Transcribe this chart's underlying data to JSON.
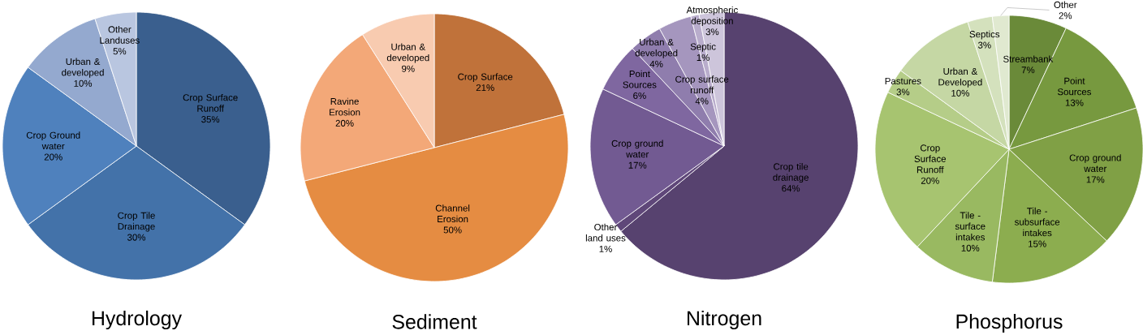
{
  "chart_data": [
    {
      "type": "pie",
      "title": "Hydrology",
      "categories": [
        "Crop Surface Runoff",
        "Crop Tile Drainage",
        "Crop Ground water",
        "Urban & developed",
        "Other Landuses"
      ],
      "values": [
        35,
        30,
        20,
        10,
        5
      ],
      "value_labels": [
        "35%",
        "30%",
        "20%",
        "10%",
        "5%"
      ],
      "colors": [
        "#3a5f8e",
        "#4372a9",
        "#4f81bd",
        "#94a9cf",
        "#b9c6e0"
      ]
    },
    {
      "type": "pie",
      "title": "Sediment",
      "categories": [
        "Crop Surface",
        "Channel Erosion",
        "Ravine Erosion",
        "Urban & developed"
      ],
      "values": [
        21,
        50,
        20,
        9
      ],
      "value_labels": [
        "21%",
        "50%",
        "20%",
        "9%"
      ],
      "colors": [
        "#c0723a",
        "#e58c42",
        "#f3a878",
        "#f8cbb0"
      ]
    },
    {
      "type": "pie",
      "title": "Nitrogen",
      "categories": [
        "Crop tile drainage",
        "Other land uses",
        "Crop ground water",
        "Point Sources",
        "Urban & developed",
        "Crop surface runoff",
        "Septic",
        "Atmospheric deposition"
      ],
      "values": [
        64,
        1,
        17,
        6,
        4,
        4,
        1,
        3
      ],
      "value_labels": [
        "64%",
        "1%",
        "17%",
        "6%",
        "4%",
        "4%",
        "1%",
        "3%"
      ],
      "colors": [
        "#57426f",
        "#5f4779",
        "#725a92",
        "#7f67a0",
        "#8f7dad",
        "#a596be",
        "#b9adcc",
        "#cdc5db"
      ]
    },
    {
      "type": "pie",
      "title": "Phosphorus",
      "categories": [
        "Streambank",
        "Point Sources",
        "Crop ground water",
        "Tile - subsurface intakes",
        "Tile - surface intakes",
        "Crop Surface Runoff",
        "Pastures",
        "Urban & Developed",
        "Septics",
        "Other"
      ],
      "values": [
        7,
        13,
        17,
        15,
        10,
        20,
        3,
        10,
        3,
        2
      ],
      "value_labels": [
        "7%",
        "13%",
        "17%",
        "15%",
        "10%",
        "20%",
        "3%",
        "10%",
        "3%",
        "2%"
      ],
      "colors": [
        "#6a8a39",
        "#77993f",
        "#80a045",
        "#8cad4f",
        "#99b961",
        "#a7c470",
        "#b5cd88",
        "#c5d7a4",
        "#d4e1bd",
        "#e0e9d0"
      ]
    }
  ]
}
